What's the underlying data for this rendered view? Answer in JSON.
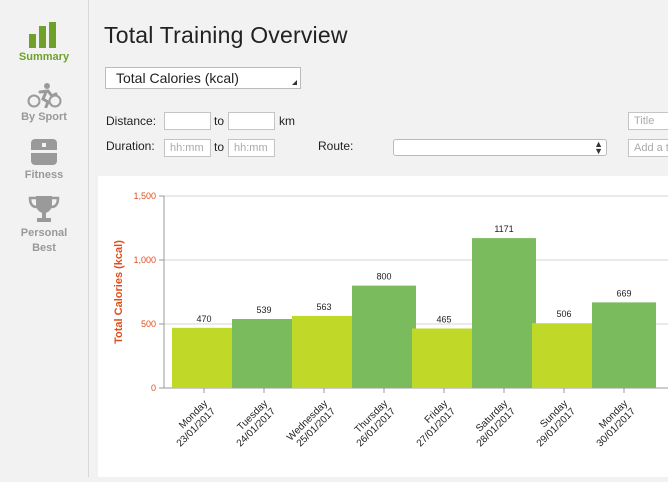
{
  "sidebar": {
    "items": [
      {
        "label": "Summary",
        "icon": "bar-chart-icon",
        "active": true
      },
      {
        "label": "By Sport",
        "icon": "triathlon-icon",
        "active": false
      },
      {
        "label": "Fitness",
        "icon": "fitness-icon",
        "active": false
      },
      {
        "label": "Personal",
        "label2": "Best",
        "icon": "trophy-icon",
        "active": false
      }
    ]
  },
  "header": {
    "title": "Total Training Overview"
  },
  "metric_select": {
    "value": "Total Calories (kcal)"
  },
  "filters": {
    "distance_label": "Distance:",
    "distance_to": "to",
    "distance_unit": "km",
    "duration_label": "Duration:",
    "duration_from_placeholder": "hh:mm",
    "duration_to": "to",
    "duration_to_placeholder": "hh:mm",
    "route_label": "Route:",
    "title_placeholder": "Title",
    "tag_placeholder": "Add a t"
  },
  "colors": {
    "accent": "#6fa12a",
    "bar_light": "#c0d929",
    "bar_dark": "#79bb5d",
    "axis_label": "#e04e1c"
  },
  "chart_data": {
    "type": "bar",
    "ylabel": "Total Calories (kcal)",
    "ylim": [
      0,
      1500
    ],
    "yticks": [
      "0",
      "500",
      "1,000",
      "1,500"
    ],
    "ytick_values": [
      0,
      500,
      1000,
      1500
    ],
    "grid": true,
    "categories": [
      {
        "day": "Monday",
        "date": "23/01/2017"
      },
      {
        "day": "Tuesday",
        "date": "24/01/2017"
      },
      {
        "day": "Wednesday",
        "date": "25/01/2017"
      },
      {
        "day": "Thursday",
        "date": "26/01/2017"
      },
      {
        "day": "Friday",
        "date": "27/01/2017"
      },
      {
        "day": "Saturday",
        "date": "28/01/2017"
      },
      {
        "day": "Sunday",
        "date": "29/01/2017"
      },
      {
        "day": "Monday",
        "date": "30/01/2017"
      }
    ],
    "values": [
      470,
      539,
      563,
      800,
      465,
      1171,
      506,
      669
    ],
    "value_labels": [
      "470",
      "539",
      "563",
      "800",
      "465",
      "1171",
      "506",
      "669"
    ]
  }
}
